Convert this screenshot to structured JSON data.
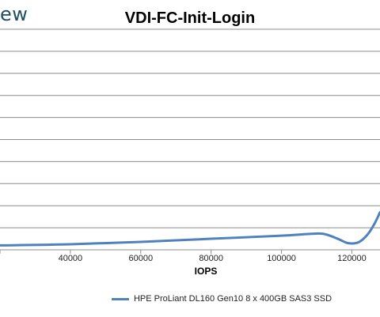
{
  "brand": {
    "fragment": "ew"
  },
  "chart_data": {
    "type": "line",
    "title": "VDI-FC-Init-Login",
    "xlabel": "IOPS",
    "ylabel": "",
    "xlim": [
      20000,
      128000
    ],
    "ylim": [
      0,
      10
    ],
    "x_ticks": [
      40000,
      60000,
      80000,
      100000,
      120000
    ],
    "x_tick_labels": [
      "40000",
      "60000",
      "80000",
      "100000",
      "120000"
    ],
    "y_gridlines": [
      1,
      2,
      3,
      4,
      5,
      6,
      7,
      8,
      9,
      10
    ],
    "grid": true,
    "legend_position": "bottom",
    "series": [
      {
        "name": "HPE ProLiant DL160 Gen10 8 x 400GB SAS3 SSD",
        "color": "#4f81bd",
        "x": [
          20000,
          40000,
          60000,
          80000,
          100000,
          108000,
          112000,
          116000,
          119000,
          122000,
          124500,
          126500,
          128000
        ],
        "y": [
          0.2,
          0.25,
          0.36,
          0.5,
          0.64,
          0.72,
          0.72,
          0.5,
          0.3,
          0.35,
          0.7,
          1.2,
          1.7
        ]
      }
    ]
  }
}
